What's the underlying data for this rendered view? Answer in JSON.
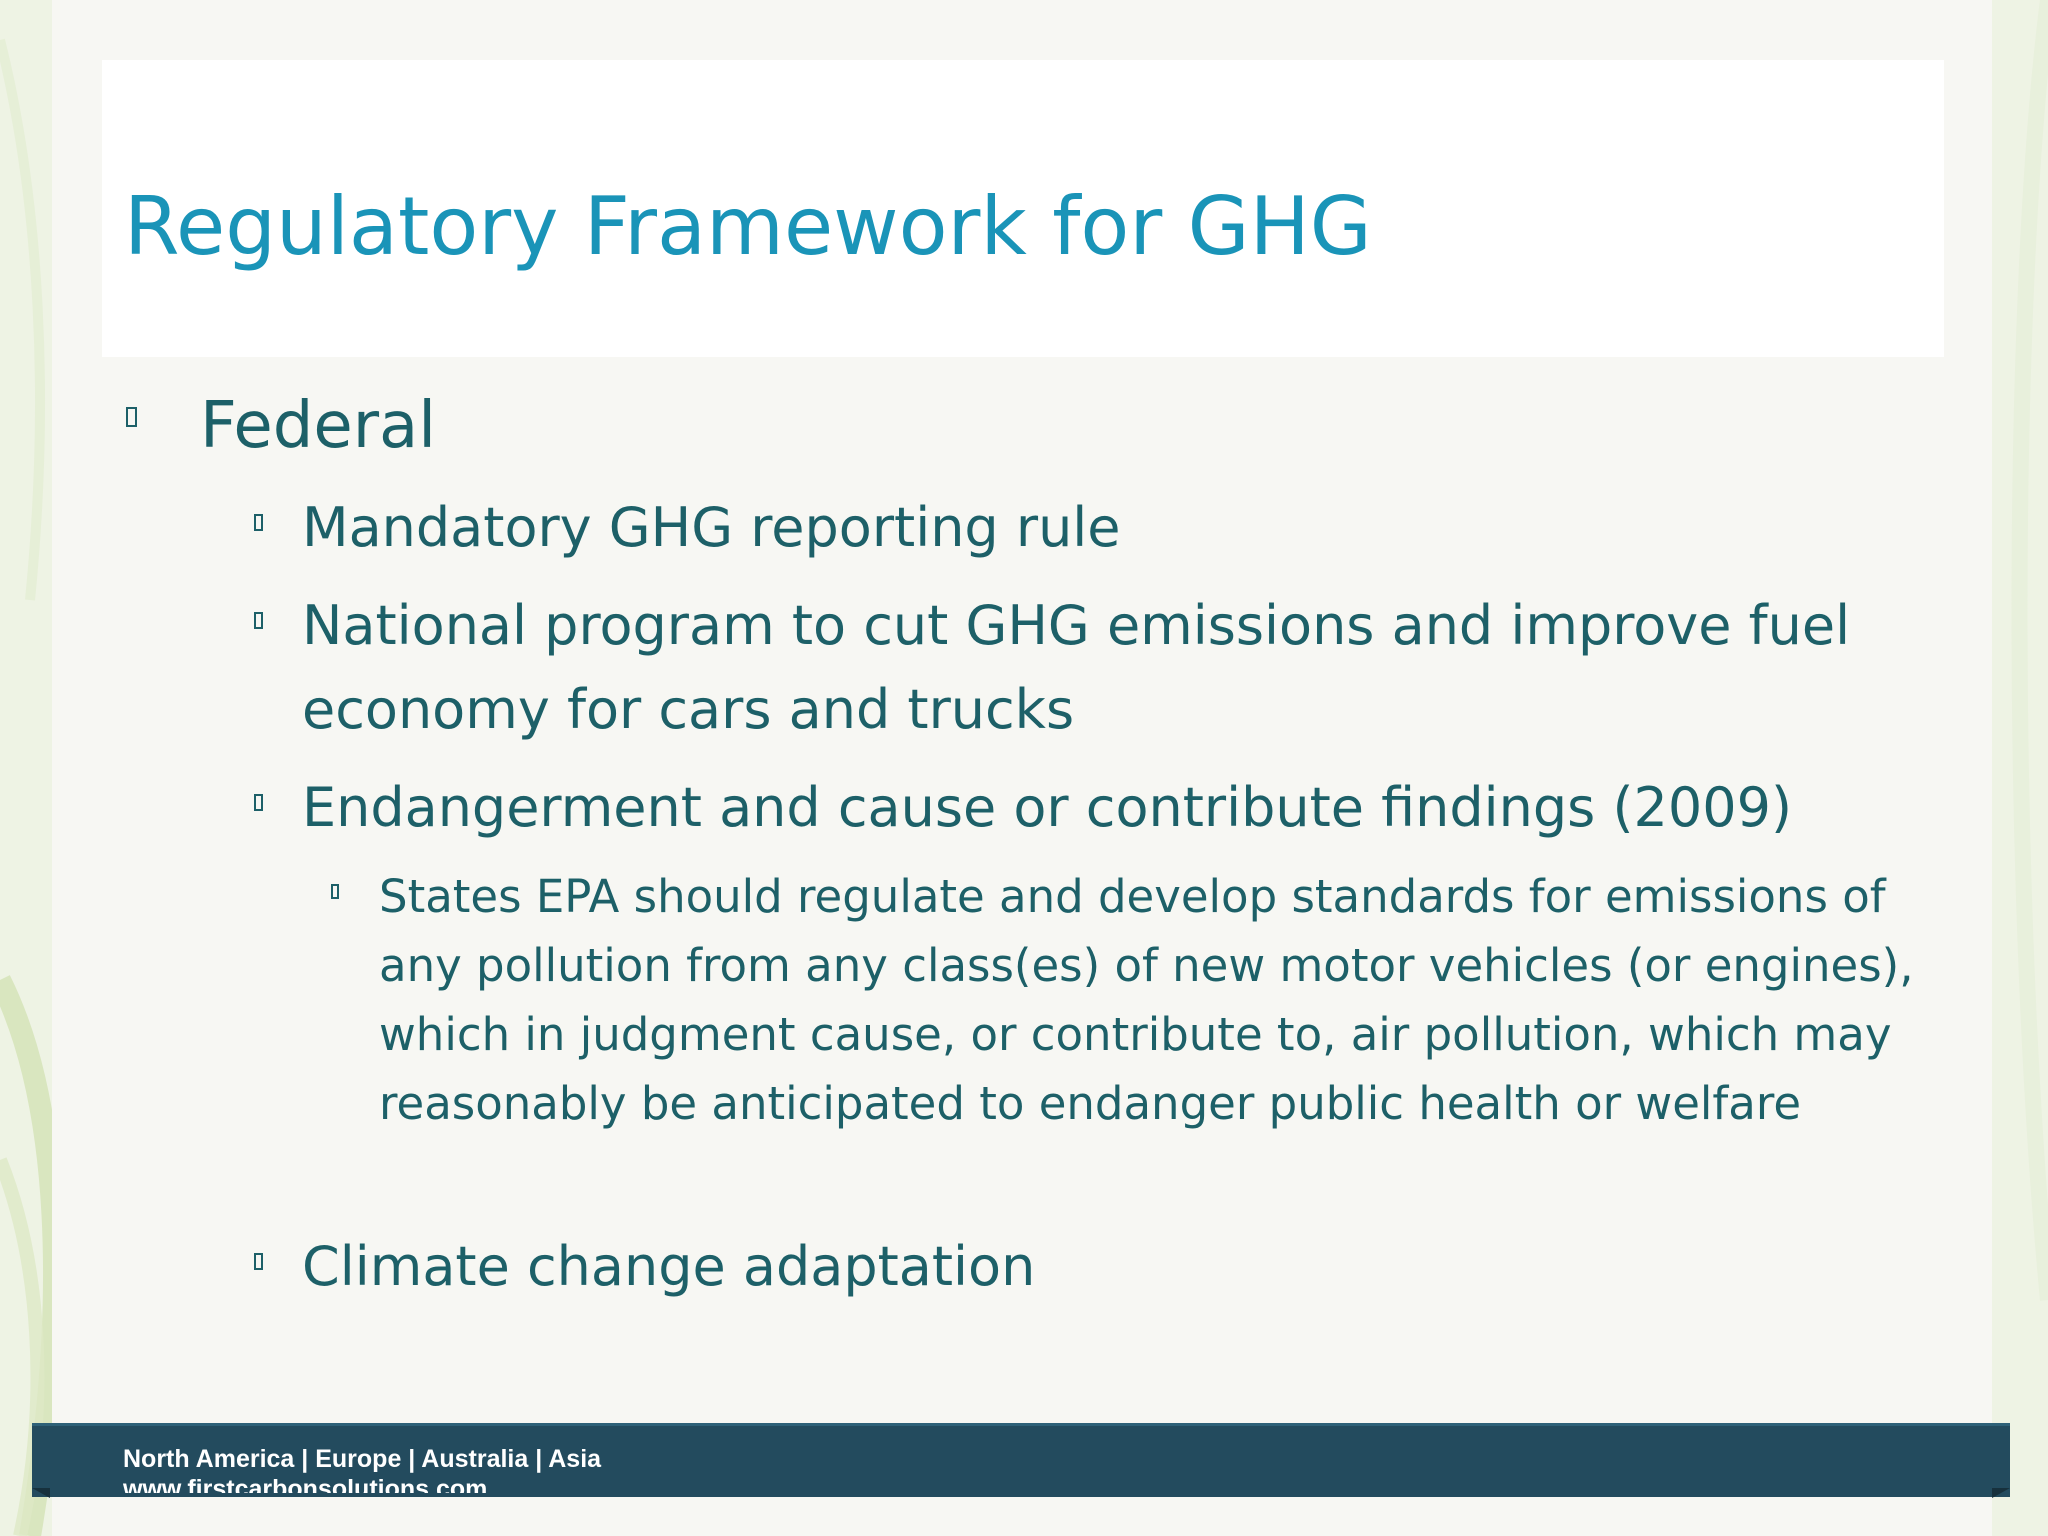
{
  "slide": {
    "title": "Regulatory Framework for GHG",
    "bullets": {
      "federal": "Federal",
      "mandatory_reporting": "Mandatory GHG reporting rule",
      "national_program": "National program to cut GHG emissions and improve fuel economy for cars and trucks",
      "endangerment": "Endangerment and cause or contribute findings (2009)",
      "states_epa": "States EPA should regulate and develop standards for emissions of any pollution from any class(es) of new motor vehicles (or engines), which in judgment cause, or contribute to, air pollution, which may reasonably be anticipated to endanger public health or welfare",
      "climate_adaptation": "Climate change adaptation"
    }
  },
  "footer": {
    "regions": "North America | Europe | Australia | Asia",
    "url": "www.firstcarbonsolutions.com"
  },
  "colors": {
    "title": "#1a94b8",
    "body_text": "#1d6068",
    "footer_bar": "#234b5e",
    "swoosh": "#c9dba6"
  }
}
